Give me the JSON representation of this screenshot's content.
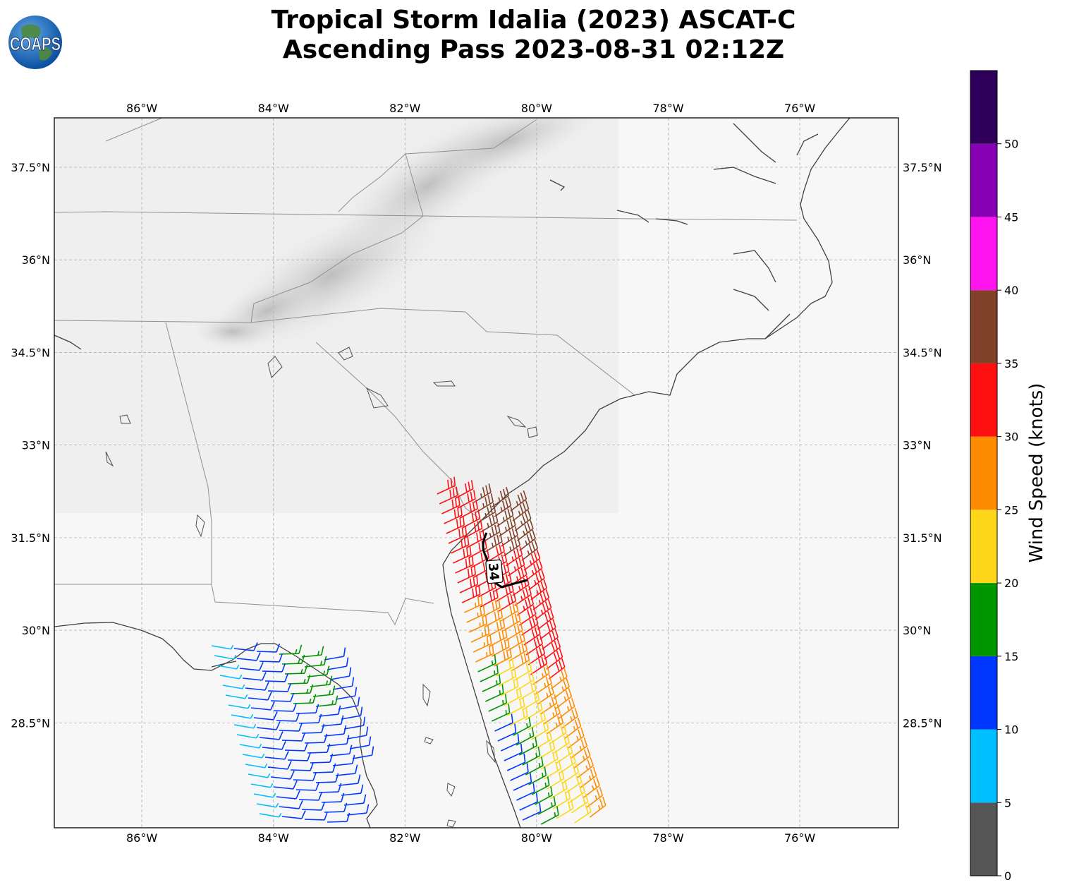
{
  "title_line1": "Tropical Storm Idalia (2023) ASCAT-C",
  "title_line2": "Ascending Pass 2023-08-31 02:12Z",
  "logo_text": "COAPS",
  "logo_icon": "globe-icon",
  "map": {
    "lon_range": [
      -87.33,
      -74.5
    ],
    "lat_range": [
      26.8,
      38.3
    ],
    "lon_ticks": [
      -86,
      -84,
      -82,
      -80,
      -78,
      -76
    ],
    "lon_tick_labels": [
      "86°W",
      "84°W",
      "82°W",
      "80°W",
      "78°W",
      "76°W"
    ],
    "lat_ticks": [
      37.5,
      36,
      34.5,
      33,
      31.5,
      30,
      28.5
    ],
    "lat_tick_labels": [
      "37.5°N",
      "36°N",
      "34.5°N",
      "33°N",
      "31.5°N",
      "30°N",
      "28.5°N"
    ],
    "grid": true,
    "contour_label": "34"
  },
  "colorbar": {
    "label": "Wind Speed (knots)",
    "ticks": [
      0,
      5,
      10,
      15,
      20,
      25,
      30,
      35,
      40,
      45,
      50
    ],
    "tick_labels": [
      "0",
      "5",
      "10",
      "15",
      "20",
      "25",
      "30",
      "35",
      "40",
      "45",
      "50"
    ],
    "bins": [
      {
        "min": 0,
        "max": 5,
        "color": "#555555"
      },
      {
        "min": 5,
        "max": 10,
        "color": "#00bfff"
      },
      {
        "min": 10,
        "max": 15,
        "color": "#0037ff"
      },
      {
        "min": 15,
        "max": 20,
        "color": "#009600"
      },
      {
        "min": 20,
        "max": 25,
        "color": "#ffd71a"
      },
      {
        "min": 25,
        "max": 30,
        "color": "#ff8c00"
      },
      {
        "min": 30,
        "max": 35,
        "color": "#ff1010"
      },
      {
        "min": 35,
        "max": 40,
        "color": "#80402a"
      },
      {
        "min": 40,
        "max": 45,
        "color": "#ff14f0"
      },
      {
        "min": 45,
        "max": 50,
        "color": "#8800b4"
      },
      {
        "min": 50,
        "max": 55,
        "color": "#2e005a"
      }
    ]
  },
  "colors": {
    "coast": "#404040",
    "state_border": "#909090",
    "grid": "#b0b0b0",
    "contour": "#000000"
  }
}
